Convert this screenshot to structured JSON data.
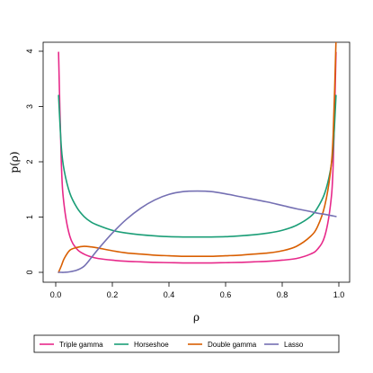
{
  "chart_data": {
    "type": "line",
    "title": "",
    "xlabel": "ρ",
    "ylabel": "p(ρ)",
    "xlim": [
      0,
      1
    ],
    "ylim": [
      0,
      4
    ],
    "x_ticks": [
      "0.0",
      "0.2",
      "0.4",
      "0.6",
      "0.8",
      "1.0"
    ],
    "y_ticks": [
      "0",
      "1",
      "2",
      "3",
      "4"
    ],
    "grid": false,
    "legend_position": "bottom",
    "x": [
      0.01,
      0.02,
      0.03,
      0.05,
      0.075,
      0.1,
      0.125,
      0.15,
      0.2,
      0.25,
      0.3,
      0.35,
      0.4,
      0.45,
      0.5,
      0.55,
      0.6,
      0.65,
      0.7,
      0.75,
      0.8,
      0.85,
      0.9,
      0.925,
      0.95,
      0.97,
      0.98,
      0.99
    ],
    "series": [
      {
        "name": "Triple gamma",
        "color": "#e7298a",
        "values": [
          3.98,
          1.95,
          1.2,
          0.65,
          0.42,
          0.33,
          0.28,
          0.25,
          0.22,
          0.2,
          0.19,
          0.18,
          0.175,
          0.17,
          0.17,
          0.17,
          0.175,
          0.18,
          0.19,
          0.2,
          0.22,
          0.25,
          0.33,
          0.42,
          0.65,
          1.2,
          1.95,
          3.98
        ]
      },
      {
        "name": "Horseshoe",
        "color": "#1b9e77",
        "values": [
          3.2,
          2.25,
          1.84,
          1.43,
          1.17,
          1.01,
          0.91,
          0.85,
          0.76,
          0.71,
          0.68,
          0.66,
          0.645,
          0.64,
          0.64,
          0.64,
          0.645,
          0.66,
          0.68,
          0.71,
          0.76,
          0.85,
          1.01,
          1.17,
          1.43,
          1.84,
          2.25,
          3.2
        ]
      },
      {
        "name": "Double gamma",
        "color": "#d95f02",
        "values": [
          0.0,
          0.12,
          0.25,
          0.4,
          0.45,
          0.47,
          0.46,
          0.44,
          0.39,
          0.35,
          0.33,
          0.31,
          0.3,
          0.29,
          0.29,
          0.29,
          0.3,
          0.31,
          0.33,
          0.35,
          0.39,
          0.47,
          0.65,
          0.83,
          1.2,
          1.8,
          2.5,
          4.2
        ]
      },
      {
        "name": "Lasso",
        "color": "#7570b3",
        "values": [
          0.0,
          0.0,
          0.0,
          0.01,
          0.04,
          0.11,
          0.26,
          0.42,
          0.71,
          0.96,
          1.16,
          1.31,
          1.41,
          1.46,
          1.47,
          1.46,
          1.42,
          1.37,
          1.32,
          1.27,
          1.21,
          1.15,
          1.1,
          1.07,
          1.05,
          1.03,
          1.02,
          1.01
        ]
      }
    ]
  }
}
